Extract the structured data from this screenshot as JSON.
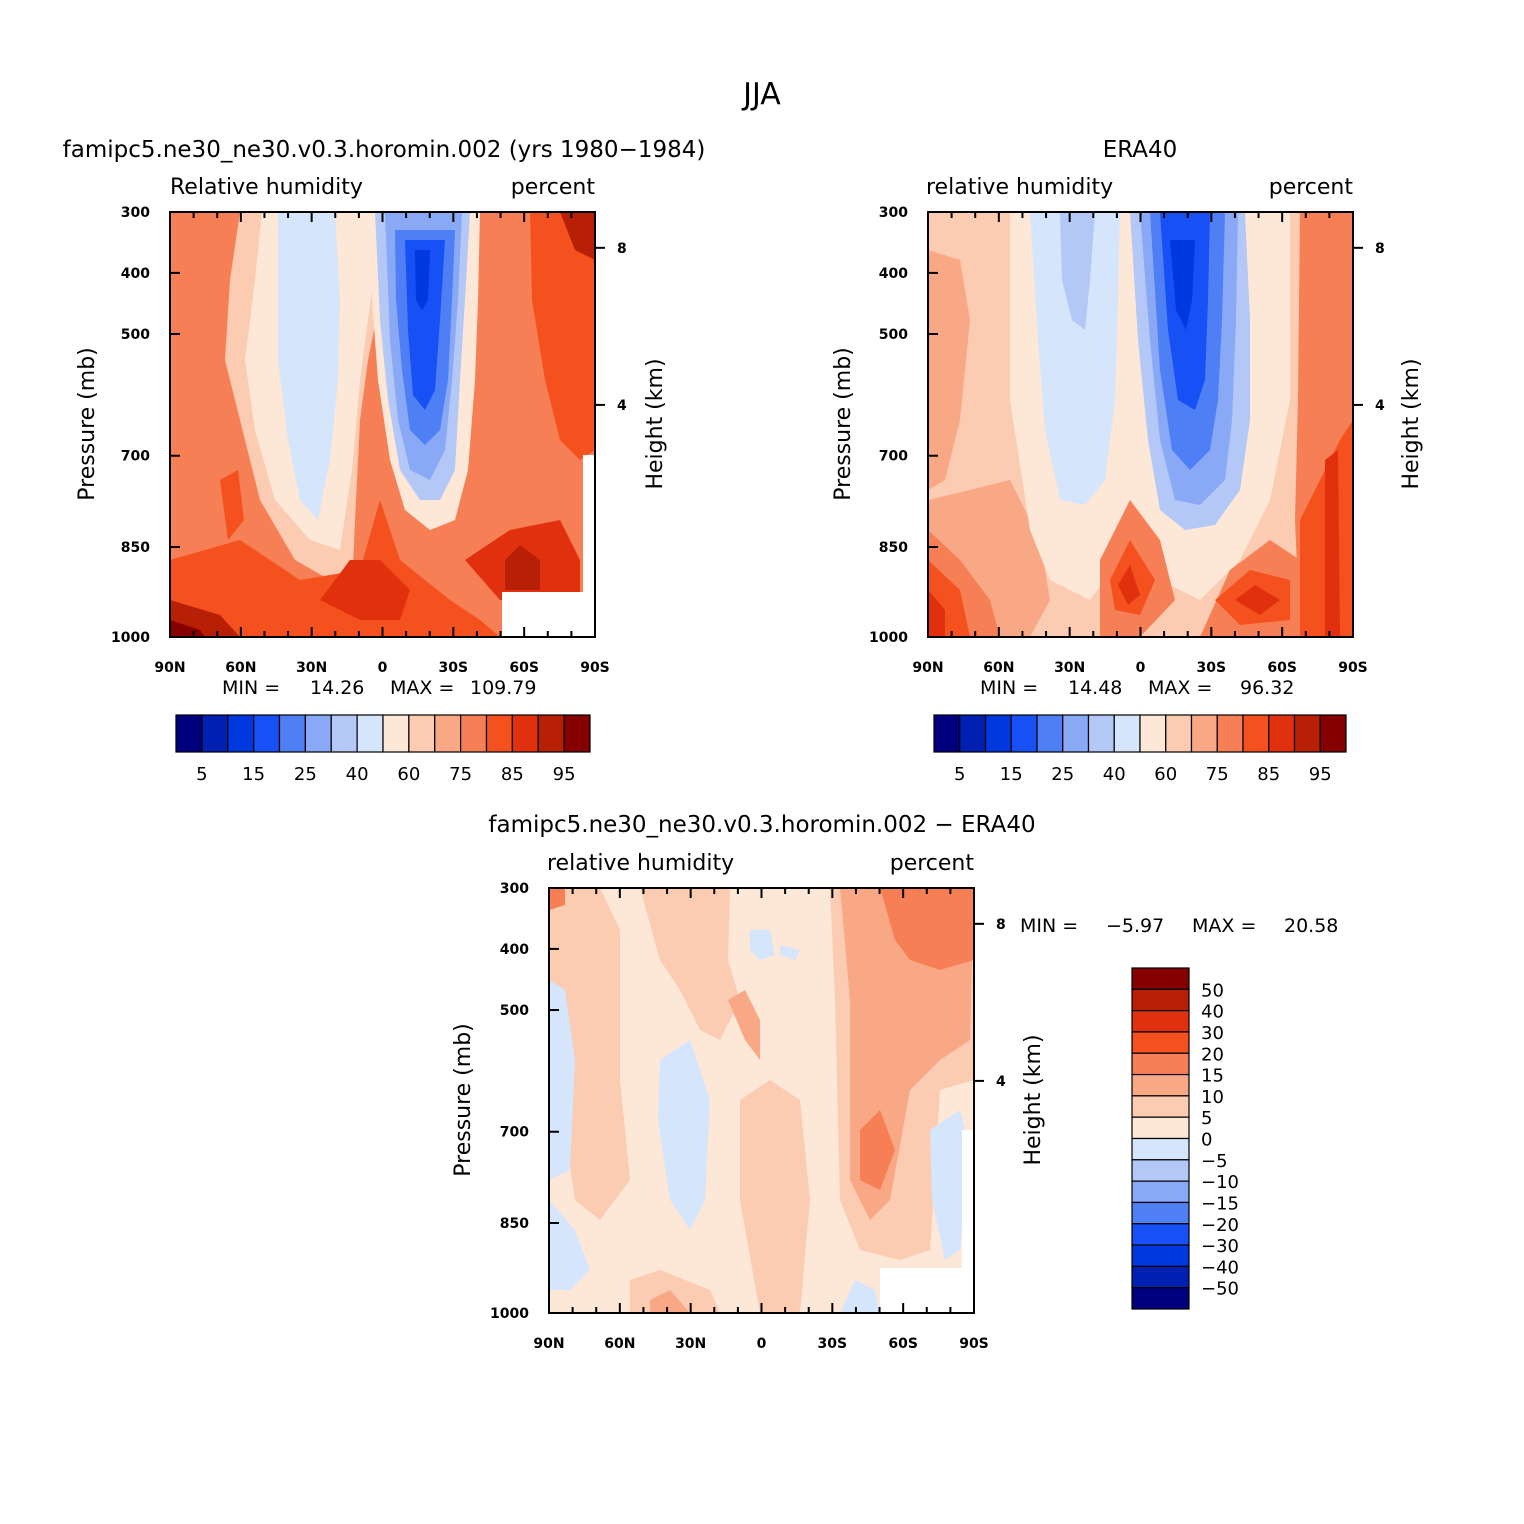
{
  "figure": {
    "title": "JJA"
  },
  "chart_data": [
    {
      "type": "heatmap",
      "title": "famipc5.ne30_ne30.v0.3.horomin.002 (yrs 1980−1984)",
      "variable_label": "Relative humidity",
      "units_label": "percent",
      "xlabel": "",
      "ylabel": "Pressure (mb)",
      "right_ylabel": "Height (km)",
      "x_ticks": [
        "90N",
        "60N",
        "30N",
        "0",
        "30S",
        "60S",
        "90S"
      ],
      "y_ticks": [
        "300",
        "400",
        "500",
        "700",
        "850",
        "1000"
      ],
      "right_ticks": [
        "8",
        "4"
      ],
      "stats": {
        "min_label": "MIN =",
        "min": "14.26",
        "max_label": "MAX =",
        "max": "109.79"
      },
      "colorbar": {
        "levels": [
          5,
          10,
          15,
          20,
          25,
          30,
          40,
          50,
          60,
          70,
          75,
          80,
          85,
          90,
          95
        ],
        "labels": [
          "5",
          "15",
          "25",
          "40",
          "60",
          "75",
          "85",
          "95"
        ]
      }
    },
    {
      "type": "heatmap",
      "title": "ERA40",
      "variable_label": "relative humidity",
      "units_label": "percent",
      "xlabel": "",
      "ylabel": "Pressure (mb)",
      "right_ylabel": "Height (km)",
      "x_ticks": [
        "90N",
        "60N",
        "30N",
        "0",
        "30S",
        "60S",
        "90S"
      ],
      "y_ticks": [
        "300",
        "400",
        "500",
        "700",
        "850",
        "1000"
      ],
      "right_ticks": [
        "8",
        "4"
      ],
      "stats": {
        "min_label": "MIN =",
        "min": "14.48",
        "max_label": "MAX =",
        "max": "96.32"
      },
      "colorbar": {
        "levels": [
          5,
          10,
          15,
          20,
          25,
          30,
          40,
          50,
          60,
          70,
          75,
          80,
          85,
          90,
          95
        ],
        "labels": [
          "5",
          "15",
          "25",
          "40",
          "60",
          "75",
          "85",
          "95"
        ]
      }
    },
    {
      "type": "heatmap",
      "title": "famipc5.ne30_ne30.v0.3.horomin.002 − ERA40",
      "variable_label": "relative humidity",
      "units_label": "percent",
      "xlabel": "",
      "ylabel": "Pressure (mb)",
      "right_ylabel": "Height (km)",
      "x_ticks": [
        "90N",
        "60N",
        "30N",
        "0",
        "30S",
        "60S",
        "90S"
      ],
      "y_ticks": [
        "300",
        "400",
        "500",
        "700",
        "850",
        "1000"
      ],
      "right_ticks": [
        "8",
        "4"
      ],
      "stats": {
        "min_label": "MIN =",
        "min": "−5.97",
        "max_label": "MAX =",
        "max": "20.58"
      },
      "colorbar": {
        "levels": [
          -50,
          -40,
          -30,
          -20,
          -15,
          -10,
          -5,
          0,
          5,
          10,
          15,
          20,
          30,
          40,
          50
        ],
        "labels": [
          "50",
          "40",
          "30",
          "20",
          "15",
          "10",
          "5",
          "0",
          "−5",
          "−10",
          "−15",
          "−20",
          "−30",
          "−40",
          "−50"
        ]
      }
    }
  ],
  "palette": [
    "#00007f",
    "#0020b2",
    "#0038e0",
    "#1750f5",
    "#4f7ff5",
    "#89a8f5",
    "#b3c8f7",
    "#d5e5fb",
    "#fde8d8",
    "#fbcbb2",
    "#f9a886",
    "#f77f55",
    "#f5511f",
    "#e0300d",
    "#b82006",
    "#850000"
  ]
}
